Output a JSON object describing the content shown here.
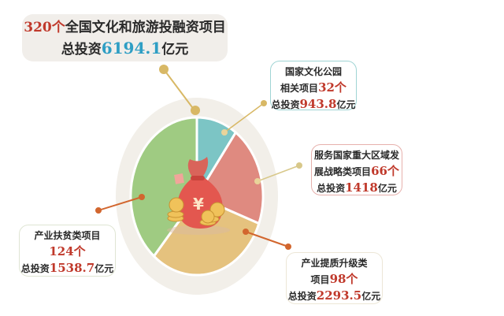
{
  "title": {
    "count": "320个",
    "text": "全国文化和旅游投融资项目",
    "prefix": "总投资",
    "total": "6194.1",
    "unit": "亿元"
  },
  "chart_data": {
    "type": "pie",
    "title": "320个全国文化和旅游投融资项目 总投资6194.1亿元",
    "slices": [
      {
        "name": "国家文化公园相关项目",
        "count": 32,
        "investment": 943.8,
        "color": "#7cc5c5"
      },
      {
        "name": "服务国家重大区域发展战略类项目",
        "count": 66,
        "investment": 1418,
        "color": "#df8a80"
      },
      {
        "name": "产业提质升级类项目",
        "count": 98,
        "investment": 2293.5,
        "color": "#e5c27e"
      },
      {
        "name": "产业扶贫类项目",
        "count": 124,
        "investment": 1538.7,
        "color": "#9fcb82"
      }
    ]
  },
  "labels": [
    {
      "line1": "国家文化公园",
      "line2": "相关项目",
      "count": "32个",
      "prefix": "总投资",
      "value": "943.8",
      "unit": "亿元"
    },
    {
      "line1": "服务国家重大区域发",
      "line2": "展战略类项目",
      "count": "66个",
      "prefix": "总投资",
      "value": "1418",
      "unit": "亿元"
    },
    {
      "line1": "产业提质升级类",
      "line2": "项目",
      "count": "98个",
      "prefix": "总投资",
      "value": "2293.5",
      "unit": "亿元"
    },
    {
      "line1": "产业扶贫类项目",
      "line2": "",
      "count": "124个",
      "prefix": "总投资",
      "value": "1538.7",
      "unit": "亿元"
    }
  ],
  "icon": {
    "center": "money-bag-icon",
    "symbol": "¥"
  }
}
